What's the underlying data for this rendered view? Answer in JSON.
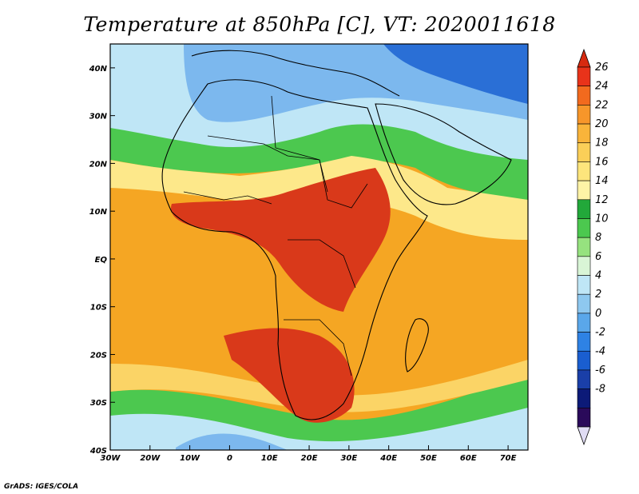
{
  "title": "Temperature at 850hPa [C], VT: 2020011618",
  "credit": "GrADS: IGES/COLA",
  "map": {
    "lon_range": [
      -30,
      75
    ],
    "lat_range": [
      -40,
      45
    ],
    "x_ticks": [
      "30W",
      "20W",
      "10W",
      "0",
      "10E",
      "20E",
      "30E",
      "40E",
      "50E",
      "60E",
      "70E"
    ],
    "y_ticks": [
      "40S",
      "30S",
      "20S",
      "10S",
      "EQ",
      "10N",
      "20N",
      "30N",
      "40N"
    ],
    "background_color": "#f5a623"
  },
  "colorbar": {
    "labels": [
      "26",
      "24",
      "22",
      "20",
      "18",
      "16",
      "14",
      "12",
      "10",
      "8",
      "6",
      "4",
      "2",
      "0",
      "-2",
      "-4",
      "-6",
      "-8"
    ],
    "colors_top_to_bottom": [
      "#e8331a",
      "#f26a1e",
      "#f7962a",
      "#f9b43a",
      "#fbcf58",
      "#fde57c",
      "#fef3a6",
      "#22a83a",
      "#4cc84f",
      "#96e27f",
      "#d9f5d6",
      "#bfe6f6",
      "#8ec8ef",
      "#5aa7ea",
      "#2e82e4",
      "#1a5ed0",
      "#1a3fa8",
      "#0c1a78",
      "#2a0a5a"
    ],
    "lower_cap": "#e0dcf4",
    "upper_cap": "#d62a10"
  },
  "colors": {
    "hot": "#d9391a",
    "warm": "#f39a2a",
    "mild": "#fbd466",
    "pale": "#fde88a",
    "green": "#4cc84f",
    "lightgreen": "#8ad98a",
    "cyan": "#bfe6f6",
    "blue": "#7cb8ee",
    "deepblue": "#2a6fd6"
  }
}
